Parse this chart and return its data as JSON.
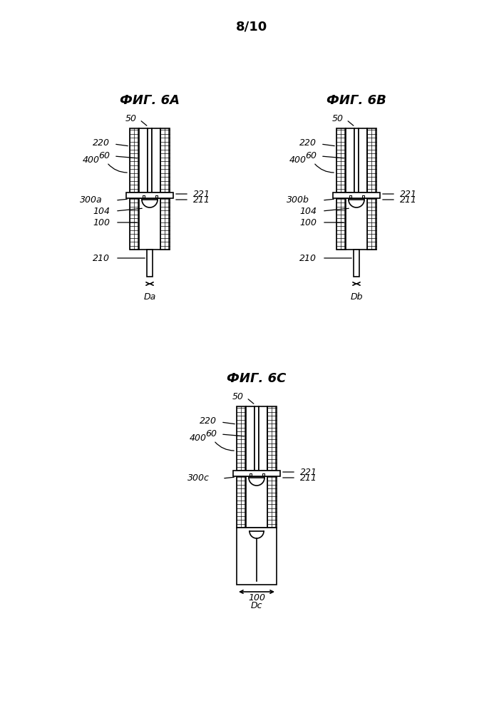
{
  "page_label": "8/10",
  "fig_titles": [
    "ФИГ. 6А",
    "ФИГ. 6В",
    "ФИГ. 6С"
  ],
  "bg_color": "#ffffff",
  "line_color": "#000000"
}
